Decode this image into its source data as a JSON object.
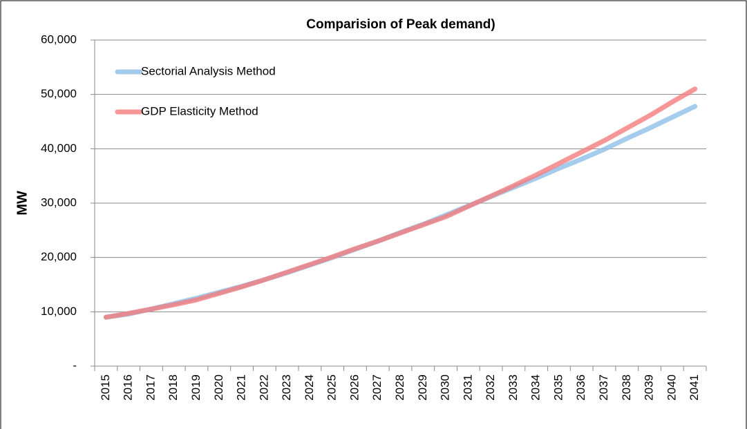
{
  "chart_data": {
    "type": "line",
    "title": "Comparision of Peak demand)",
    "y_label": "MW",
    "categories": [
      "2015",
      "2016",
      "2017",
      "2018",
      "2019",
      "2020",
      "2021",
      "2022",
      "2023",
      "2024",
      "2025",
      "2026",
      "2027",
      "2028",
      "2029",
      "2030",
      "2031",
      "2032",
      "2033",
      "2034",
      "2035",
      "2036",
      "2037",
      "2038",
      "2039",
      "2040",
      "2041"
    ],
    "series": [
      {
        "name": "Sectorial Analysis Method",
        "color": "#8fbfe8",
        "values": [
          9000,
          9600,
          10500,
          11500,
          12500,
          13600,
          14700,
          15900,
          17200,
          18600,
          20000,
          21500,
          23000,
          24600,
          26100,
          27800,
          29500,
          31200,
          32900,
          34600,
          36400,
          38100,
          39900,
          41900,
          43800,
          45800,
          47800
        ]
      },
      {
        "name": "GDP Elasticity Method",
        "color": "#f47c7c",
        "values": [
          9000,
          9700,
          10500,
          11300,
          12200,
          13400,
          14600,
          15900,
          17300,
          18700,
          20100,
          21600,
          23000,
          24500,
          26000,
          27500,
          29400,
          31300,
          33200,
          35200,
          37300,
          39400,
          41500,
          43800,
          46100,
          48600,
          51000
        ]
      }
    ],
    "ylim": [
      0,
      60000
    ],
    "yticks": [
      {
        "value": 0,
        "label": "-"
      },
      {
        "value": 10000,
        "label": "10,000"
      },
      {
        "value": 20000,
        "label": "20,000"
      },
      {
        "value": 30000,
        "label": "30,000"
      },
      {
        "value": 40000,
        "label": "40,000"
      },
      {
        "value": 50000,
        "label": "50,000"
      },
      {
        "value": 60000,
        "label": "60,000"
      }
    ],
    "grid": true,
    "legend": "upper left"
  }
}
